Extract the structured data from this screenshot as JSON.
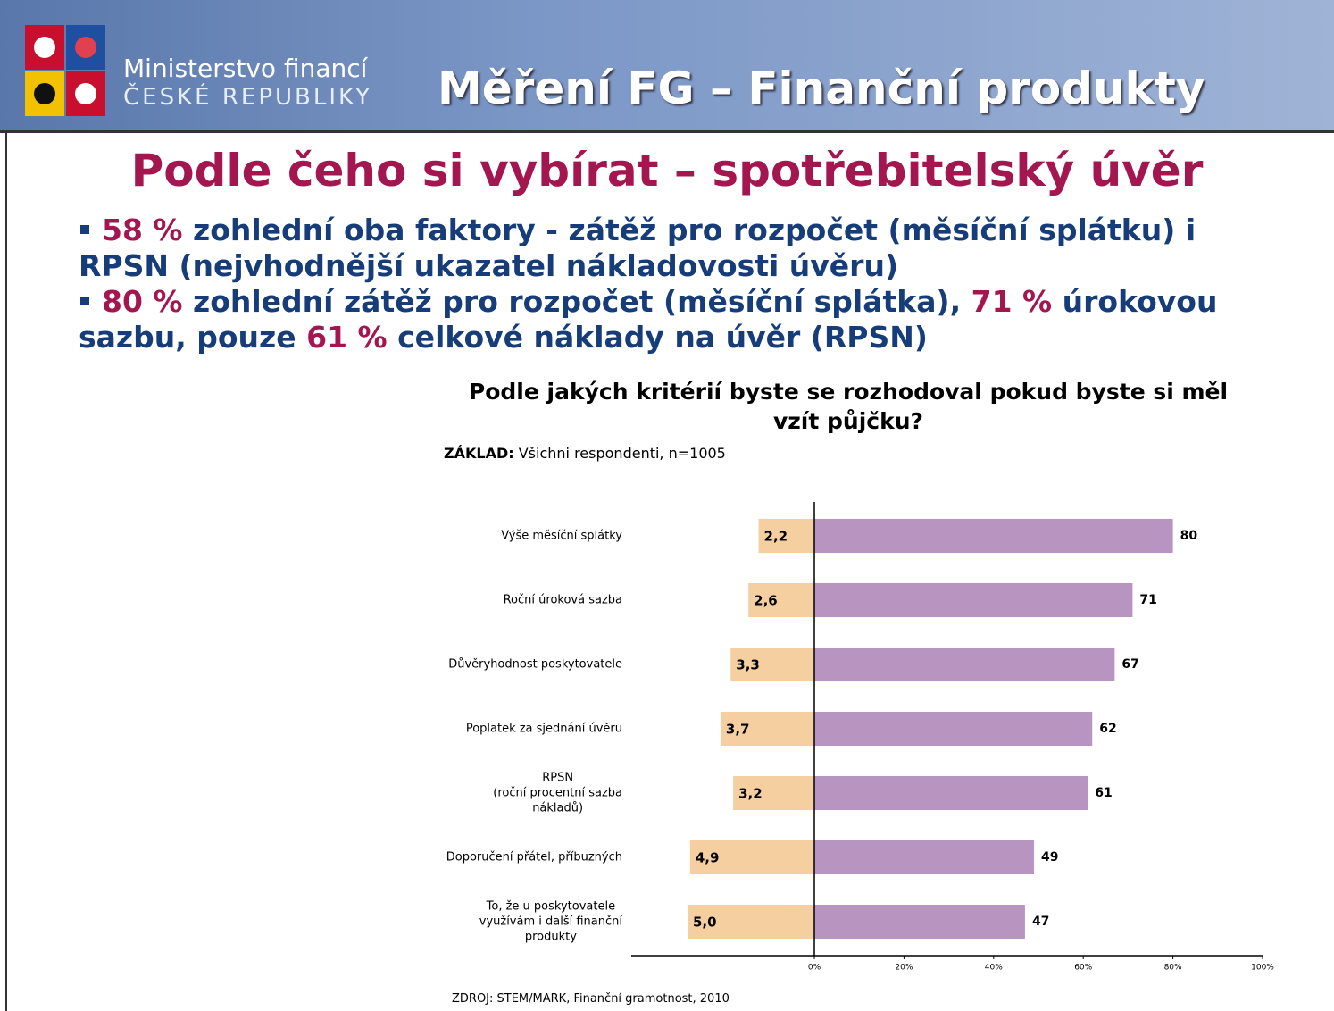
{
  "header": {
    "ministry_line1": "Ministerstvo financí",
    "ministry_line2": "ČESKÉ REPUBLIKY",
    "title": "Měření FG – Finanční produkty"
  },
  "slide_title": "Podle čeho si vybírat – spotřebitelský úvěr",
  "bullets": [
    [
      {
        "text": "58 %",
        "highlight": true
      },
      {
        "text": "zohlední oba faktory - zátěž pro rozpočet (měsíční splátku) i RPSN (nejvhodnější ukazatel nákladovosti úvěru)"
      }
    ],
    [
      {
        "text": "80 %",
        "highlight": true
      },
      {
        "text": "zohlední zátěž pro rozpočet (měsíční splátka),"
      },
      {
        "text": "71 %",
        "highlight": true
      },
      {
        "text": "úrokovou sazbu, pouze"
      },
      {
        "text": "61 %",
        "highlight": true
      },
      {
        "text": "celkové náklady na úvěr (RPSN)"
      }
    ]
  ],
  "chart_data": {
    "type": "diverging-bar",
    "title": "Podle jakých kritérií byste se rozhodoval pokud byste si měl vzít půjčku?",
    "base_label": "ZÁKLAD:",
    "base_text": "Všichni respondenti, n=1005",
    "source": "ZDROJ: STEM/MARK, Finanční gramotnost, 2010",
    "categories": [
      "Výše měsíční splátky",
      "Roční úroková sazba",
      "Důvěryhodnost poskytovatele",
      "Poplatek za sjednání úvěru",
      "RPSN\n(roční procentní sazba\nnákladů)",
      "Doporučení přátel, příbuzných",
      "To, že u poskytovatele\nvyužívám i další finanční\nprodukty"
    ],
    "series": [
      {
        "color": "#f5cfa0",
        "values": [
          2.2,
          2.6,
          3.3,
          3.7,
          3.2,
          4.9,
          5.0
        ],
        "value_labels": [
          "2,2",
          "2,6",
          "3,3",
          "3,7",
          "3,2",
          "4,9",
          "5,0"
        ]
      },
      {
        "color": "#b895c0",
        "values": [
          80,
          71,
          67,
          62,
          61,
          49,
          47
        ]
      }
    ],
    "xlim": [
      0,
      100
    ],
    "xticks": [
      {
        "value": 0,
        "label": "0%"
      },
      {
        "value": 20,
        "label": "20%"
      },
      {
        "value": 40,
        "label": "40%"
      },
      {
        "value": 60,
        "label": "60%"
      },
      {
        "value": 80,
        "label": "80%"
      },
      {
        "value": 100,
        "label": "100%"
      }
    ]
  }
}
